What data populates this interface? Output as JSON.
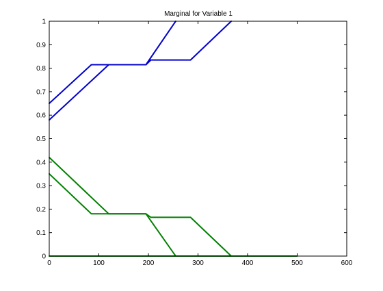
{
  "chart_data": {
    "type": "line",
    "title": "Marginal for Variable 1",
    "xlabel": "",
    "ylabel": "",
    "xlim": [
      0,
      600
    ],
    "ylim": [
      0,
      1
    ],
    "xticks": [
      0,
      100,
      200,
      300,
      400,
      500,
      600
    ],
    "yticks": [
      0,
      0.1,
      0.2,
      0.3,
      0.4,
      0.5,
      0.6,
      0.7,
      0.8,
      0.9,
      1
    ],
    "grid": false,
    "legend": false,
    "series": [
      {
        "color": "#0000cc",
        "points": [
          [
            0,
            0.65
          ],
          [
            85,
            0.815
          ],
          [
            195,
            0.815
          ],
          [
            255,
            1.0
          ]
        ]
      },
      {
        "color": "#0000cc",
        "points": [
          [
            0,
            0.58
          ],
          [
            120,
            0.815
          ],
          [
            195,
            0.815
          ],
          [
            205,
            0.835
          ],
          [
            285,
            0.835
          ],
          [
            367,
            1.0
          ]
        ]
      },
      {
        "color": "#008000",
        "points": [
          [
            0,
            0.42
          ],
          [
            120,
            0.18
          ],
          [
            195,
            0.18
          ],
          [
            255,
            0.0
          ]
        ]
      },
      {
        "color": "#008000",
        "points": [
          [
            0,
            0.35
          ],
          [
            85,
            0.18
          ],
          [
            195,
            0.18
          ],
          [
            205,
            0.165
          ],
          [
            285,
            0.165
          ],
          [
            367,
            0.0
          ]
        ]
      },
      {
        "color": "#008000",
        "points": [
          [
            0,
            0.0
          ],
          [
            500,
            0.0
          ]
        ]
      }
    ]
  }
}
